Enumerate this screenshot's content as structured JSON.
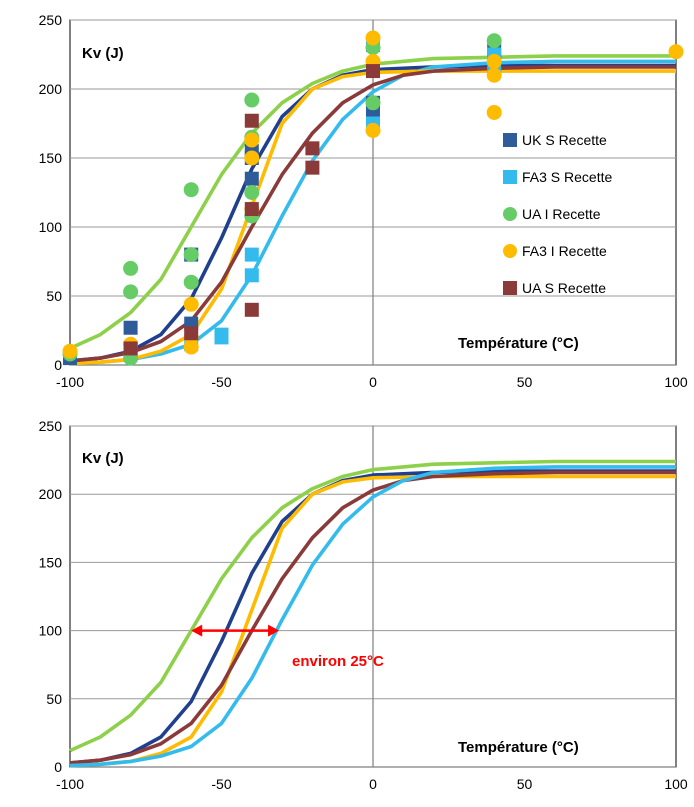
{
  "chart_data": [
    {
      "type": "scatter",
      "title": "",
      "xlabel": "Température (°C)",
      "ylabel": "Kv (J)",
      "xlim": [
        -100,
        100
      ],
      "ylim": [
        0,
        250
      ],
      "xticks": [
        -100,
        -50,
        0,
        50,
        100
      ],
      "yticks": [
        0,
        50,
        100,
        150,
        200,
        250
      ],
      "grid": "horizontal",
      "legend_position": "right",
      "series": [
        {
          "name": "UK S Recette",
          "color": "#2e5c9a",
          "marker": "square",
          "points": [
            [
              -100,
              5
            ],
            [
              -80,
              27
            ],
            [
              -80,
              10
            ],
            [
              -60,
              30
            ],
            [
              -60,
              80
            ],
            [
              -40,
              150
            ],
            [
              -40,
              135
            ],
            [
              -40,
              155
            ],
            [
              0,
              232
            ],
            [
              0,
              190
            ],
            [
              0,
              180
            ],
            [
              40,
              228
            ],
            [
              40,
              220
            ]
          ],
          "fit_color": "#1f3f8f",
          "fit": [
            [
              -100,
              3
            ],
            [
              -90,
              5
            ],
            [
              -80,
              10
            ],
            [
              -70,
              22
            ],
            [
              -60,
              48
            ],
            [
              -50,
              92
            ],
            [
              -40,
              142
            ],
            [
              -30,
              180
            ],
            [
              -20,
              200
            ],
            [
              -10,
              210
            ],
            [
              0,
              214
            ],
            [
              20,
              216
            ],
            [
              40,
              217
            ],
            [
              60,
              217
            ],
            [
              80,
              217
            ],
            [
              100,
              217
            ]
          ]
        },
        {
          "name": "FA3 S Recette",
          "color": "#33bbee",
          "marker": "square",
          "points": [
            [
              -80,
              10
            ],
            [
              -60,
              15
            ],
            [
              -50,
              20
            ],
            [
              -50,
              22
            ],
            [
              -40,
              80
            ],
            [
              -40,
              65
            ],
            [
              0,
              175
            ],
            [
              0,
              233
            ],
            [
              40,
              225
            ],
            [
              40,
              215
            ]
          ],
          "fit_color": "#33bbee",
          "fit": [
            [
              -100,
              1
            ],
            [
              -90,
              2
            ],
            [
              -80,
              4
            ],
            [
              -70,
              8
            ],
            [
              -60,
              15
            ],
            [
              -50,
              32
            ],
            [
              -40,
              65
            ],
            [
              -30,
              108
            ],
            [
              -20,
              148
            ],
            [
              -10,
              178
            ],
            [
              0,
              198
            ],
            [
              10,
              210
            ],
            [
              20,
              216
            ],
            [
              40,
              219
            ],
            [
              60,
              220
            ],
            [
              80,
              220
            ],
            [
              100,
              220
            ]
          ]
        },
        {
          "name": "UA I Recette",
          "color": "#66cc66",
          "marker": "circle",
          "points": [
            [
              -100,
              8
            ],
            [
              -80,
              70
            ],
            [
              -80,
              53
            ],
            [
              -80,
              5
            ],
            [
              -60,
              127
            ],
            [
              -60,
              80
            ],
            [
              -60,
              60
            ],
            [
              -40,
              192
            ],
            [
              -40,
              165
            ],
            [
              -40,
              125
            ],
            [
              -40,
              108
            ],
            [
              0,
              230
            ],
            [
              0,
              190
            ],
            [
              40,
              235
            ]
          ],
          "fit_color": "#8dd04a",
          "fit": [
            [
              -100,
              12
            ],
            [
              -90,
              22
            ],
            [
              -80,
              38
            ],
            [
              -70,
              62
            ],
            [
              -60,
              100
            ],
            [
              -50,
              138
            ],
            [
              -40,
              168
            ],
            [
              -30,
              190
            ],
            [
              -20,
              204
            ],
            [
              -10,
              213
            ],
            [
              0,
              218
            ],
            [
              20,
              222
            ],
            [
              40,
              223
            ],
            [
              60,
              224
            ],
            [
              80,
              224
            ],
            [
              100,
              224
            ]
          ]
        },
        {
          "name": "FA3 I Recette",
          "color": "#ffbb00",
          "marker": "circle",
          "points": [
            [
              -100,
              10
            ],
            [
              -80,
              15
            ],
            [
              -60,
              44
            ],
            [
              -60,
              20
            ],
            [
              -60,
              13
            ],
            [
              -40,
              163
            ],
            [
              -40,
              150
            ],
            [
              -40,
              113
            ],
            [
              0,
              237
            ],
            [
              0,
              220
            ],
            [
              0,
              170
            ],
            [
              40,
              220
            ],
            [
              40,
              210
            ],
            [
              40,
              183
            ],
            [
              100,
              227
            ]
          ],
          "fit_color": "#ffbb00",
          "fit": [
            [
              -100,
              1
            ],
            [
              -90,
              2
            ],
            [
              -80,
              4
            ],
            [
              -70,
              10
            ],
            [
              -60,
              22
            ],
            [
              -50,
              55
            ],
            [
              -40,
              115
            ],
            [
              -30,
              175
            ],
            [
              -20,
              200
            ],
            [
              -10,
              209
            ],
            [
              0,
              212
            ],
            [
              20,
              213
            ],
            [
              40,
              213
            ],
            [
              60,
              213
            ],
            [
              80,
              213
            ],
            [
              100,
              213
            ]
          ]
        },
        {
          "name": "UA S Recette",
          "color": "#8b3a3a",
          "marker": "square",
          "points": [
            [
              -80,
              12
            ],
            [
              -60,
              23
            ],
            [
              -40,
              177
            ],
            [
              -40,
              113
            ],
            [
              -40,
              40
            ],
            [
              -20,
              157
            ],
            [
              -20,
              143
            ],
            [
              0,
              213
            ]
          ],
          "fit_color": "#8b3a3a",
          "fit": [
            [
              -100,
              3
            ],
            [
              -90,
              5
            ],
            [
              -80,
              9
            ],
            [
              -70,
              17
            ],
            [
              -60,
              32
            ],
            [
              -50,
              60
            ],
            [
              -40,
              100
            ],
            [
              -30,
              138
            ],
            [
              -20,
              168
            ],
            [
              -10,
              190
            ],
            [
              0,
              203
            ],
            [
              10,
              210
            ],
            [
              20,
              213
            ],
            [
              40,
              215
            ],
            [
              60,
              216
            ],
            [
              80,
              216
            ],
            [
              100,
              216
            ]
          ]
        }
      ]
    },
    {
      "type": "line",
      "title": "",
      "xlabel": "Température (°C)",
      "ylabel": "Kv (J)",
      "xlim": [
        -100,
        100
      ],
      "ylim": [
        0,
        250
      ],
      "xticks": [
        -100,
        -50,
        0,
        50,
        100
      ],
      "yticks": [
        0,
        50,
        100,
        150,
        200,
        250
      ],
      "grid": "horizontal",
      "annotation": {
        "text": "environ 25°C",
        "color": "#ff0000",
        "arrow_from": [
          -60,
          100
        ],
        "arrow_to": [
          -31,
          100
        ],
        "text_at": [
          -27,
          65
        ]
      },
      "series": [
        {
          "color": "#8dd04a",
          "values": [
            [
              -100,
              12
            ],
            [
              -90,
              22
            ],
            [
              -80,
              38
            ],
            [
              -70,
              62
            ],
            [
              -60,
              100
            ],
            [
              -50,
              138
            ],
            [
              -40,
              168
            ],
            [
              -30,
              190
            ],
            [
              -20,
              204
            ],
            [
              -10,
              213
            ],
            [
              0,
              218
            ],
            [
              20,
              222
            ],
            [
              40,
              223
            ],
            [
              60,
              224
            ],
            [
              80,
              224
            ],
            [
              100,
              224
            ]
          ]
        },
        {
          "color": "#1f3f8f",
          "values": [
            [
              -100,
              3
            ],
            [
              -90,
              5
            ],
            [
              -80,
              10
            ],
            [
              -70,
              22
            ],
            [
              -60,
              48
            ],
            [
              -50,
              92
            ],
            [
              -40,
              142
            ],
            [
              -30,
              180
            ],
            [
              -20,
              200
            ],
            [
              -10,
              210
            ],
            [
              0,
              214
            ],
            [
              20,
              216
            ],
            [
              40,
              217
            ],
            [
              60,
              217
            ],
            [
              80,
              217
            ],
            [
              100,
              217
            ]
          ]
        },
        {
          "color": "#ffbb00",
          "values": [
            [
              -100,
              1
            ],
            [
              -90,
              2
            ],
            [
              -80,
              4
            ],
            [
              -70,
              10
            ],
            [
              -60,
              22
            ],
            [
              -50,
              55
            ],
            [
              -40,
              115
            ],
            [
              -30,
              175
            ],
            [
              -20,
              200
            ],
            [
              -10,
              209
            ],
            [
              0,
              212
            ],
            [
              20,
              213
            ],
            [
              40,
              213
            ],
            [
              60,
              213
            ],
            [
              80,
              213
            ],
            [
              100,
              213
            ]
          ]
        },
        {
          "color": "#8b3a3a",
          "values": [
            [
              -100,
              3
            ],
            [
              -90,
              5
            ],
            [
              -80,
              9
            ],
            [
              -70,
              17
            ],
            [
              -60,
              32
            ],
            [
              -50,
              60
            ],
            [
              -40,
              100
            ],
            [
              -30,
              138
            ],
            [
              -20,
              168
            ],
            [
              -10,
              190
            ],
            [
              0,
              203
            ],
            [
              10,
              210
            ],
            [
              20,
              213
            ],
            [
              40,
              215
            ],
            [
              60,
              216
            ],
            [
              80,
              216
            ],
            [
              100,
              216
            ]
          ]
        },
        {
          "color": "#33bbee",
          "values": [
            [
              -100,
              1
            ],
            [
              -90,
              2
            ],
            [
              -80,
              4
            ],
            [
              -70,
              8
            ],
            [
              -60,
              15
            ],
            [
              -50,
              32
            ],
            [
              -40,
              65
            ],
            [
              -30,
              108
            ],
            [
              -20,
              148
            ],
            [
              -10,
              178
            ],
            [
              0,
              198
            ],
            [
              10,
              210
            ],
            [
              20,
              216
            ],
            [
              40,
              219
            ],
            [
              60,
              220
            ],
            [
              80,
              220
            ],
            [
              100,
              220
            ]
          ]
        }
      ]
    }
  ]
}
